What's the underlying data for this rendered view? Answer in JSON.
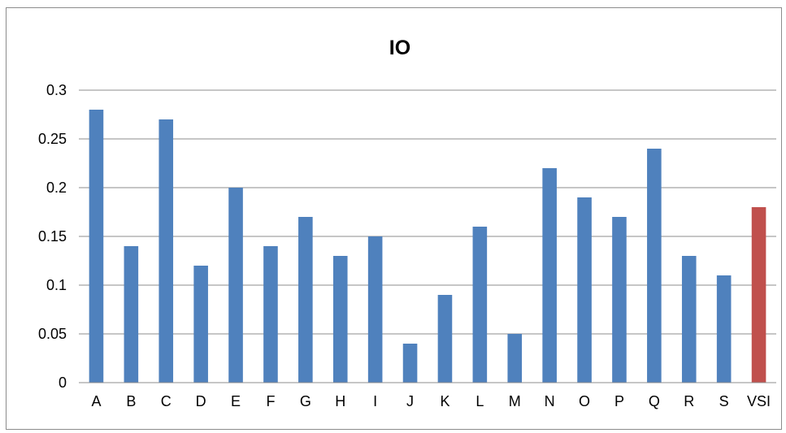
{
  "chart_data": {
    "type": "bar",
    "title": "IO",
    "xlabel": "",
    "ylabel": "",
    "categories": [
      "A",
      "B",
      "C",
      "D",
      "E",
      "F",
      "G",
      "H",
      "I",
      "J",
      "K",
      "L",
      "M",
      "N",
      "O",
      "P",
      "Q",
      "R",
      "S",
      "VSI"
    ],
    "values": [
      0.28,
      0.14,
      0.27,
      0.12,
      0.2,
      0.14,
      0.17,
      0.13,
      0.15,
      0.04,
      0.09,
      0.16,
      0.05,
      0.22,
      0.19,
      0.17,
      0.24,
      0.13,
      0.11,
      0.18
    ],
    "ylim": [
      0,
      0.3
    ],
    "yticks": [
      "0",
      "0.05",
      "0.1",
      "0.15",
      "0.2",
      "0.25",
      "0.3"
    ],
    "grid": true,
    "legend": "none",
    "colors": {
      "default_bar": "#4f81bd",
      "highlight_bar": "#c0504d",
      "highlight_category": "VSI"
    }
  }
}
